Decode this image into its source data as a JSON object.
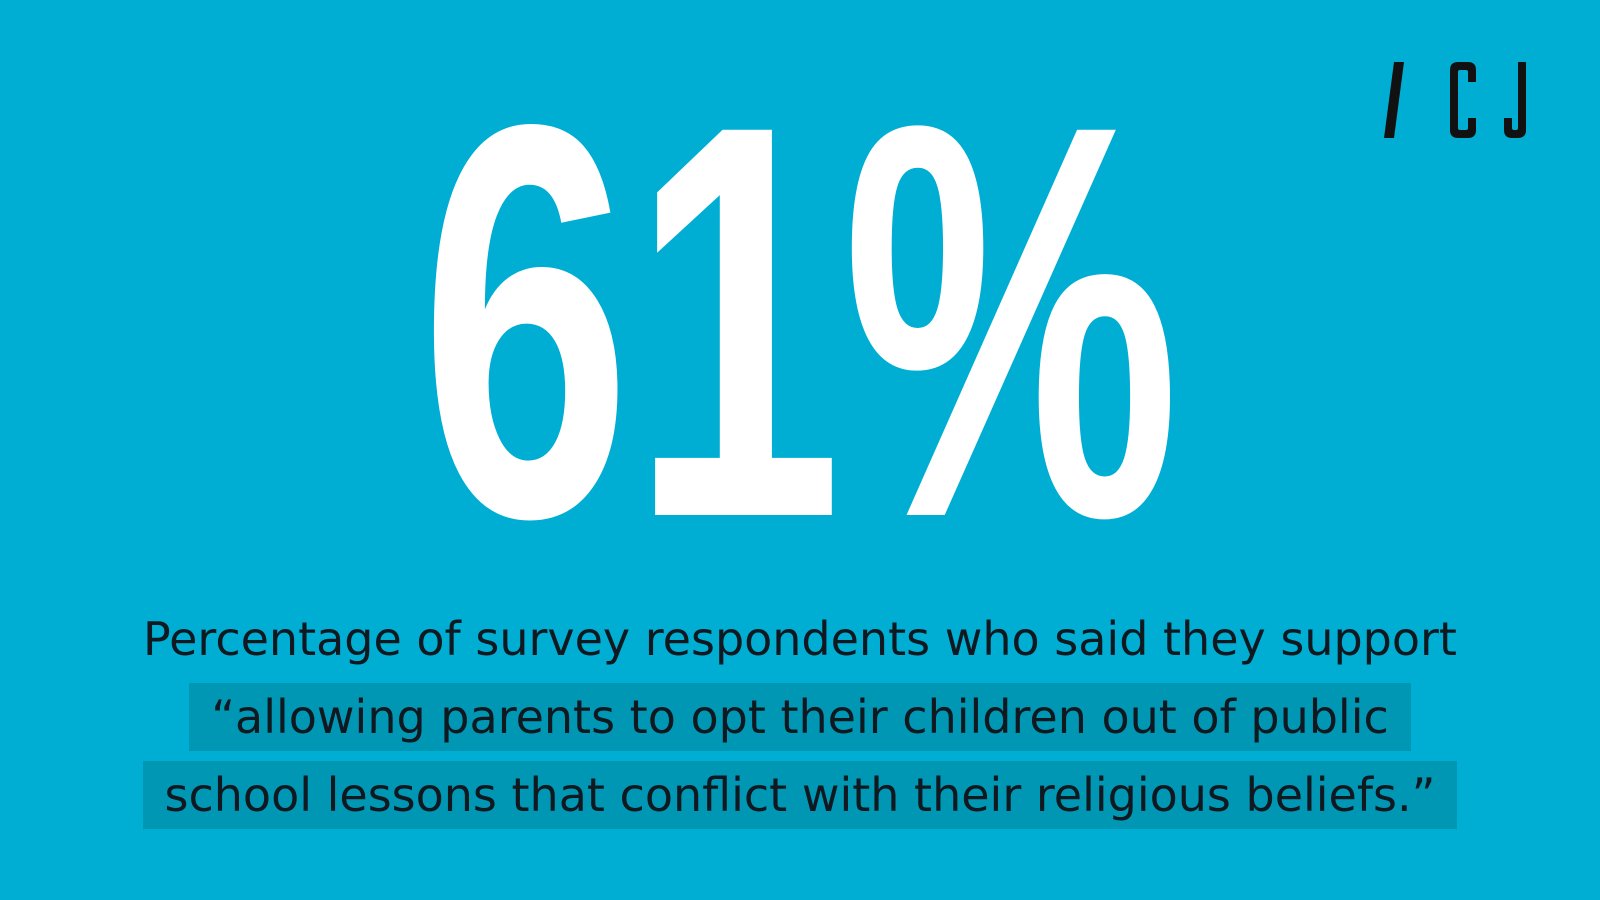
{
  "brand": {
    "logo_text": "/ CJ",
    "logo_color": "#111111"
  },
  "stat": {
    "value": "61%"
  },
  "caption": {
    "line1": "Percentage of survey respondents who said they support",
    "line2": "“allowing parents to opt their children out of public",
    "line3": "school lessons that conflict with their religious beliefs.”"
  },
  "colors": {
    "background": "#00aed3",
    "stat_text": "#ffffff",
    "caption_text": "#101820",
    "highlight": "#0097b5"
  }
}
